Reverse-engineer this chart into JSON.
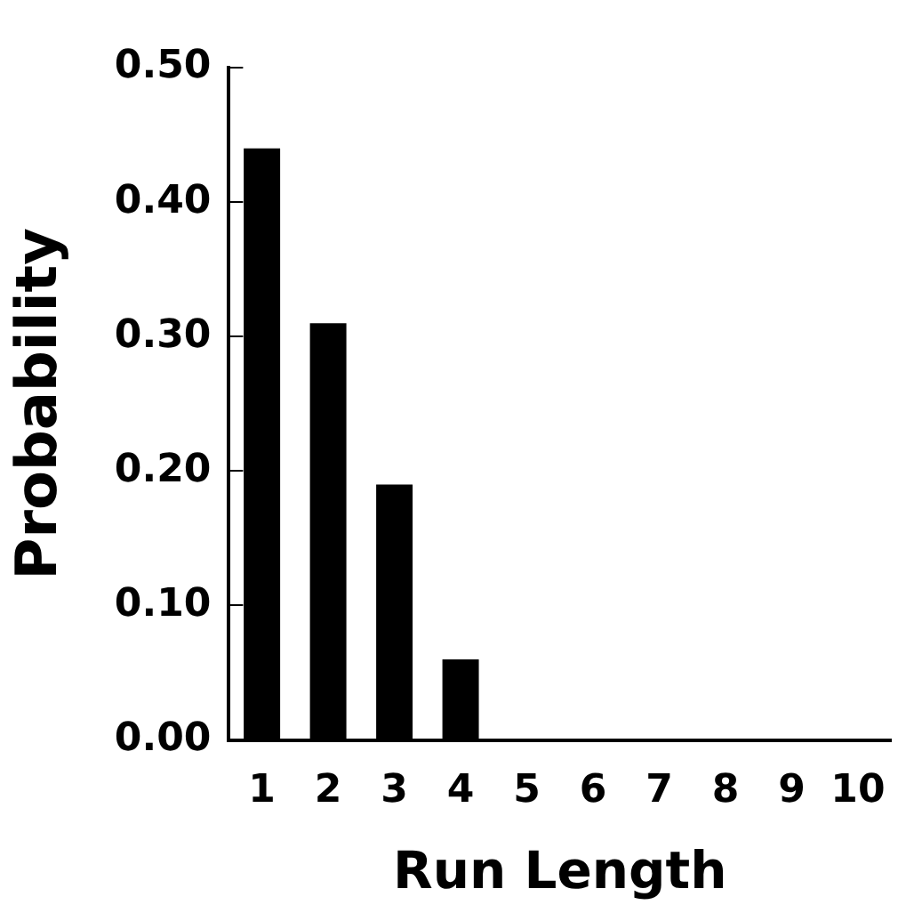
{
  "chart_data": {
    "type": "bar",
    "xlabel": "Run Length",
    "ylabel": "Probability",
    "categories": [
      "1",
      "2",
      "3",
      "4",
      "5",
      "6",
      "7",
      "8",
      "9",
      "10"
    ],
    "values": [
      0.44,
      0.31,
      0.19,
      0.06,
      0,
      0,
      0,
      0,
      0,
      0
    ],
    "color": "#000000",
    "ylim": [
      0,
      0.5
    ],
    "yticks": [
      {
        "value": 0,
        "label": "0.00"
      },
      {
        "value": 0.1,
        "label": "0.10"
      },
      {
        "value": 0.2,
        "label": "0.20"
      },
      {
        "value": 0.3,
        "label": "0.30"
      },
      {
        "value": 0.4,
        "label": "0.40"
      },
      {
        "value": 0.5,
        "label": "0.50"
      }
    ],
    "grid": false,
    "legend": false
  }
}
